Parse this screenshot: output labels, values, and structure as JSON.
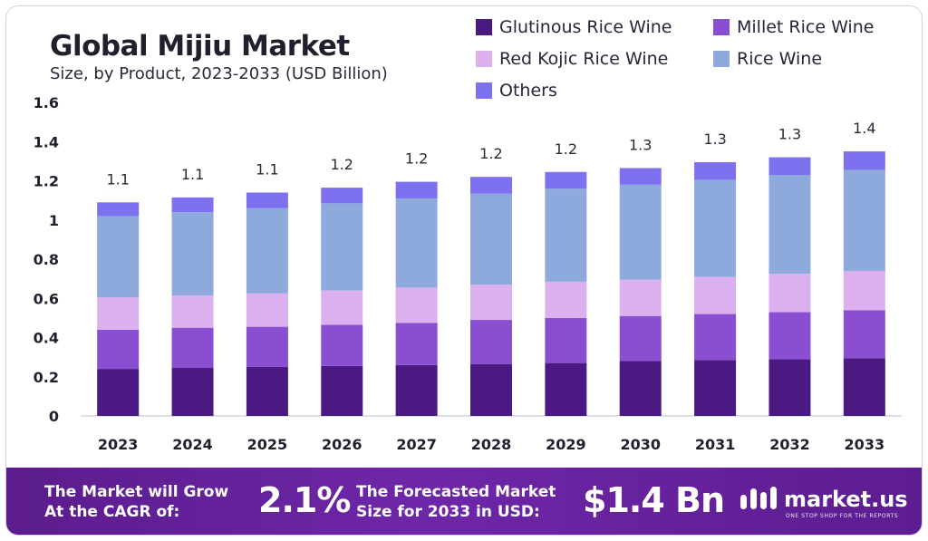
{
  "header": {
    "title": "Global Mijiu Market",
    "subtitle": "Size, by Product, 2023-2033 (USD Billion)"
  },
  "legend": [
    {
      "name": "Glutinous Rice Wine",
      "color": "#4a1a82"
    },
    {
      "name": "Millet Rice Wine",
      "color": "#8a4fd0"
    },
    {
      "name": "Red Kojic Rice Wine",
      "color": "#dcb0ef"
    },
    {
      "name": "Rice Wine",
      "color": "#8eaadd"
    },
    {
      "name": "Others",
      "color": "#7d71f0"
    }
  ],
  "chart_data": {
    "type": "bar",
    "stacked": true,
    "categories": [
      "2023",
      "2024",
      "2025",
      "2026",
      "2027",
      "2028",
      "2029",
      "2030",
      "2031",
      "2032",
      "2033"
    ],
    "series": [
      {
        "name": "Glutinous Rice Wine",
        "color": "#4a1a82",
        "values": [
          0.24,
          0.245,
          0.25,
          0.255,
          0.26,
          0.265,
          0.27,
          0.28,
          0.285,
          0.29,
          0.295
        ]
      },
      {
        "name": "Millet Rice Wine",
        "color": "#8a4fd0",
        "values": [
          0.2,
          0.205,
          0.205,
          0.21,
          0.215,
          0.225,
          0.23,
          0.23,
          0.235,
          0.24,
          0.245
        ]
      },
      {
        "name": "Red Kojic Rice Wine",
        "color": "#dcb0ef",
        "values": [
          0.165,
          0.165,
          0.17,
          0.175,
          0.18,
          0.18,
          0.185,
          0.185,
          0.19,
          0.195,
          0.2
        ]
      },
      {
        "name": "Rice Wine",
        "color": "#8eaadd",
        "values": [
          0.415,
          0.425,
          0.435,
          0.445,
          0.455,
          0.465,
          0.475,
          0.485,
          0.495,
          0.505,
          0.515
        ]
      },
      {
        "name": "Others",
        "color": "#7d71f0",
        "values": [
          0.07,
          0.075,
          0.08,
          0.08,
          0.085,
          0.085,
          0.085,
          0.085,
          0.09,
          0.09,
          0.095
        ]
      }
    ],
    "totals_labels": [
      "1.1",
      "1.1",
      "1.1",
      "1.2",
      "1.2",
      "1.2",
      "1.2",
      "1.3",
      "1.3",
      "1.3",
      "1.4"
    ],
    "yticks": [
      "0",
      "0.2",
      "0.4",
      "0.6",
      "0.8",
      "1",
      "1.2",
      "1.4",
      "1.6"
    ],
    "ylim": [
      0,
      1.6
    ],
    "title": "Global Mijiu Market",
    "xlabel": "",
    "ylabel": "",
    "grid": false,
    "legend_position": "top-right"
  },
  "banner": {
    "cagr_text_line1": "The Market will Grow",
    "cagr_text_line2": "At the CAGR of:",
    "cagr_value": "2.1%",
    "forecast_text_line1": "The Forecasted Market",
    "forecast_text_line2": "Size for 2033 in USD:",
    "forecast_value": "$1.4 Bn",
    "brand_name": "market.us",
    "brand_tagline": "ONE STOP SHOP FOR THE REPORTS"
  }
}
